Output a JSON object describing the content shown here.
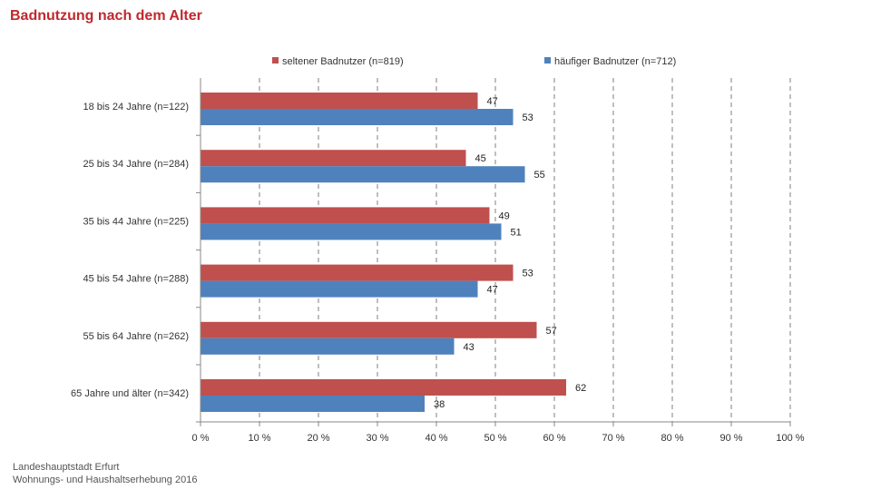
{
  "title": "Badnutzung nach dem Alter",
  "footer": {
    "line1": "Landeshauptstadt Erfurt",
    "line2": "Wohnungs- und Haushaltserhebung 2016"
  },
  "colors": {
    "title": "#c0282d",
    "series1": "#c0504d",
    "series2": "#4f81bd",
    "grid": "#7f7f7f",
    "axis_text": "#333333"
  },
  "chart_data": {
    "type": "bar",
    "orientation": "horizontal",
    "categories": [
      "18 bis 24 Jahre (n=122)",
      "25 bis 34 Jahre (n=284)",
      "35 bis 44 Jahre (n=225)",
      "45 bis 54 Jahre (n=288)",
      "55 bis 64 Jahre (n=262)",
      "65 Jahre und älter (n=342)"
    ],
    "series": [
      {
        "name": "seltener Badnutzer (n=819)",
        "values": [
          47,
          45,
          49,
          53,
          57,
          62
        ]
      },
      {
        "name": "häufiger Badnutzer (n=712)",
        "values": [
          53,
          55,
          51,
          47,
          43,
          38
        ]
      }
    ],
    "xlim": [
      0,
      100
    ],
    "xticks": [
      "0 %",
      "10 %",
      "20 %",
      "30 %",
      "40 %",
      "50 %",
      "60 %",
      "70 %",
      "80 %",
      "90 %",
      "100 %"
    ],
    "grid": "vertical dashed",
    "legend_position": "top",
    "data_labels": true
  }
}
